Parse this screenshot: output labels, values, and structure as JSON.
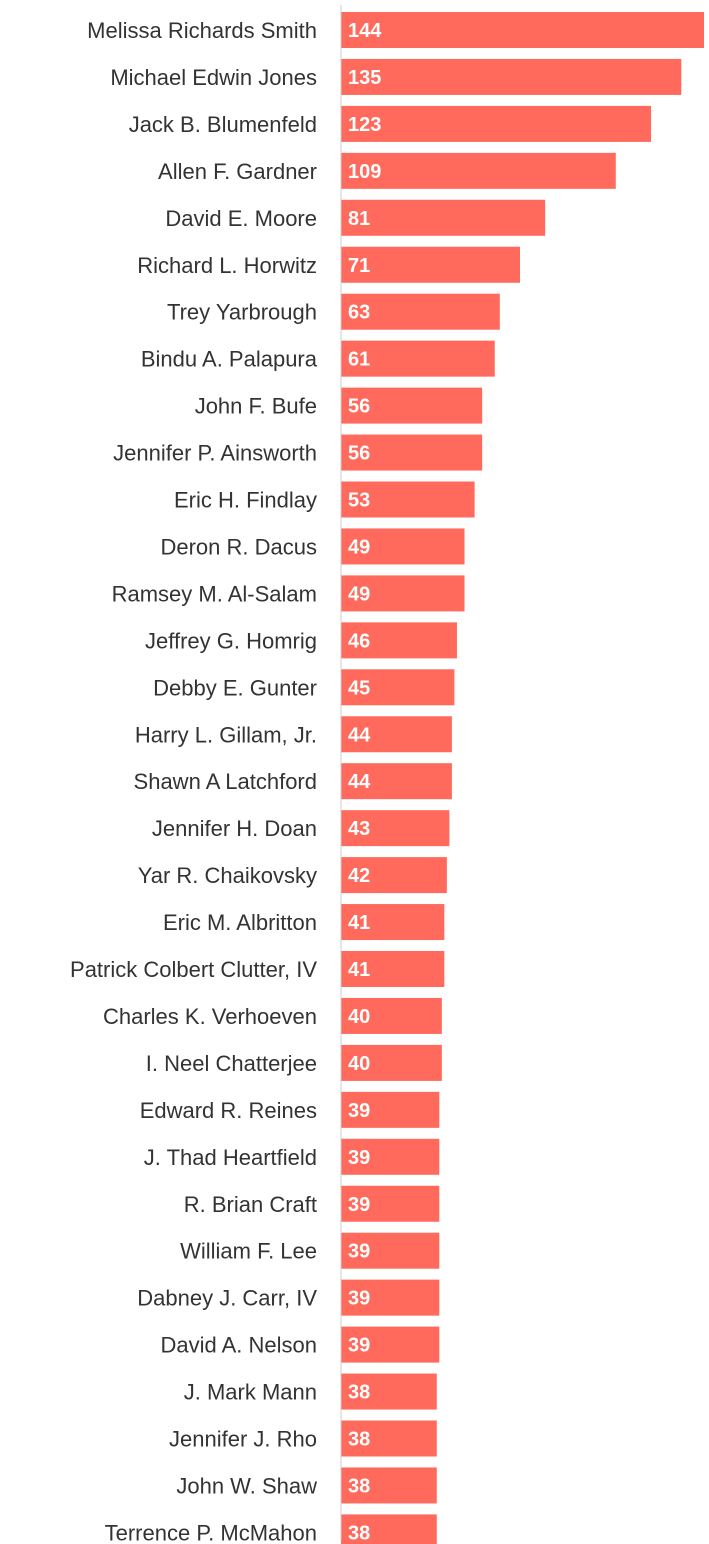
{
  "chart_data": {
    "type": "bar",
    "orientation": "horizontal",
    "categories": [
      "Melissa Richards Smith",
      "Michael Edwin Jones",
      "Jack B. Blumenfeld",
      "Allen F. Gardner",
      "David E. Moore",
      "Richard L. Horwitz",
      "Trey Yarbrough",
      "Bindu A. Palapura",
      "John F. Bufe",
      "Jennifer P. Ainsworth",
      "Eric H. Findlay",
      "Deron R. Dacus",
      "Ramsey M. Al-Salam",
      "Jeffrey G. Homrig",
      "Debby E. Gunter",
      "Harry L. Gillam, Jr.",
      "Shawn A Latchford",
      "Jennifer H. Doan",
      "Yar R. Chaikovsky",
      "Eric M. Albritton",
      "Patrick Colbert Clutter, IV",
      "Charles K. Verhoeven",
      "I. Neel Chatterjee",
      "Edward R. Reines",
      "J. Thad Heartfield",
      "R. Brian Craft",
      "William F. Lee",
      "Dabney J. Carr, IV",
      "David A. Nelson",
      "J. Mark Mann",
      "Jennifer J. Rho",
      "John W. Shaw",
      "Terrence P. McMahon"
    ],
    "values": [
      144,
      135,
      123,
      109,
      81,
      71,
      63,
      61,
      56,
      56,
      53,
      49,
      49,
      46,
      45,
      44,
      44,
      43,
      42,
      41,
      41,
      40,
      40,
      39,
      39,
      39,
      39,
      39,
      39,
      38,
      38,
      38,
      38
    ],
    "bar_color": "#FF6A5C",
    "value_label_color": "#ffffff",
    "axis_line_color": "#cccccc",
    "name_label_color": "#333333",
    "title": "",
    "xlabel": "",
    "ylabel": "",
    "xlim": [
      0,
      144
    ],
    "grid": false,
    "legend": "none"
  }
}
